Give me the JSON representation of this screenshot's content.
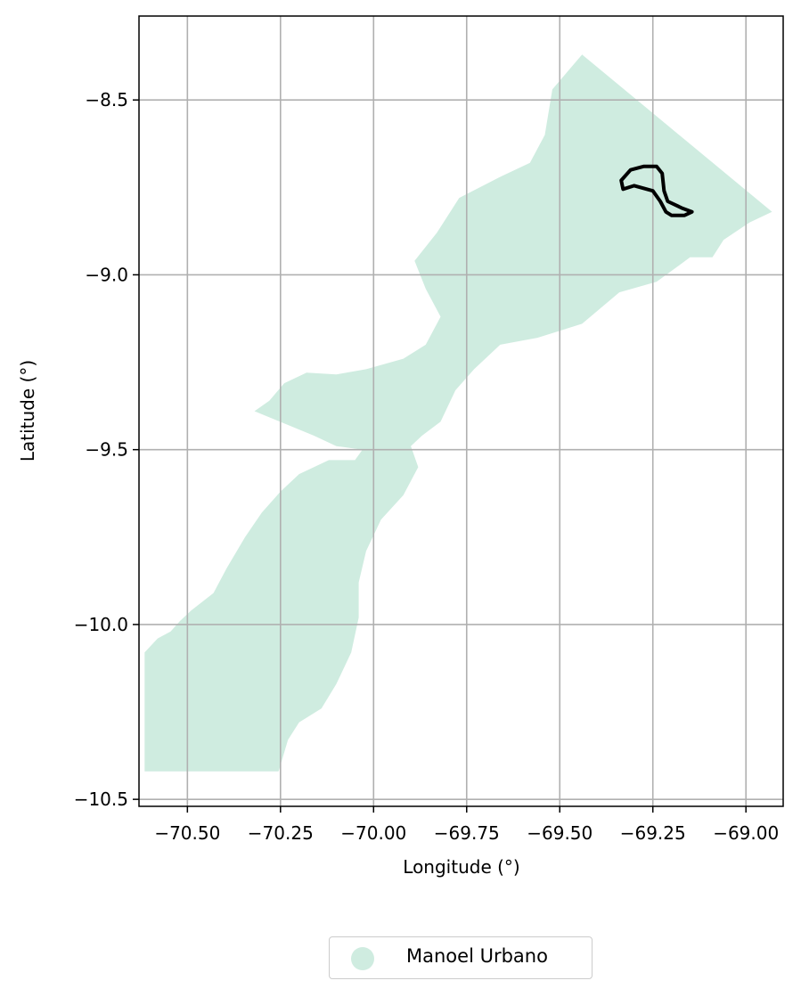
{
  "chart_data": {
    "type": "map",
    "xlabel": "Longitude (°)",
    "ylabel": "Latitude (°)",
    "xlim": [
      -70.63,
      -68.9
    ],
    "ylim": [
      -10.52,
      -8.26
    ],
    "grid": true,
    "xticks": [
      -70.5,
      -70.25,
      -70.0,
      -69.75,
      -69.5,
      -69.25,
      -69.0
    ],
    "xtick_labels": [
      "−70.50",
      "−70.25",
      "−70.00",
      "−69.75",
      "−69.50",
      "−69.25",
      "−69.00"
    ],
    "yticks": [
      -8.5,
      -9.0,
      -9.5,
      -10.0,
      -10.5
    ],
    "ytick_labels": [
      "−8.5",
      "−9.0",
      "−9.5",
      "−10.0",
      "−10.5"
    ],
    "legend": {
      "placement": "bottom-center",
      "entries": [
        {
          "label": "Manoel Urbano",
          "color": "#cfece0"
        }
      ]
    },
    "municipality": {
      "name": "Manoel Urbano",
      "fill": "#cfece0",
      "outline": [
        [
          -70.615,
          -10.42
        ],
        [
          -70.615,
          -10.08
        ],
        [
          -70.58,
          -10.04
        ],
        [
          -70.545,
          -10.02
        ],
        [
          -70.52,
          -9.99
        ],
        [
          -70.49,
          -9.96
        ],
        [
          -70.43,
          -9.91
        ],
        [
          -70.395,
          -9.84
        ],
        [
          -70.345,
          -9.75
        ],
        [
          -70.3,
          -9.68
        ],
        [
          -70.25,
          -9.62
        ],
        [
          -70.2,
          -9.57
        ],
        [
          -70.12,
          -9.53
        ],
        [
          -70.05,
          -9.53
        ],
        [
          -70.03,
          -9.5
        ],
        [
          -70.1,
          -9.49
        ],
        [
          -70.16,
          -9.46
        ],
        [
          -70.32,
          -9.39
        ],
        [
          -70.28,
          -9.36
        ],
        [
          -70.24,
          -9.31
        ],
        [
          -70.18,
          -9.28
        ],
        [
          -70.1,
          -9.285
        ],
        [
          -70.02,
          -9.27
        ],
        [
          -69.92,
          -9.24
        ],
        [
          -69.86,
          -9.2
        ],
        [
          -69.82,
          -9.12
        ],
        [
          -69.86,
          -9.04
        ],
        [
          -69.89,
          -8.96
        ],
        [
          -69.83,
          -8.88
        ],
        [
          -69.77,
          -8.78
        ],
        [
          -69.66,
          -8.72
        ],
        [
          -69.58,
          -8.68
        ],
        [
          -69.54,
          -8.6
        ],
        [
          -69.52,
          -8.47
        ],
        [
          -69.44,
          -8.37
        ],
        [
          -68.93,
          -8.82
        ],
        [
          -68.99,
          -8.85
        ],
        [
          -69.06,
          -8.9
        ],
        [
          -69.09,
          -8.95
        ],
        [
          -69.15,
          -8.95
        ],
        [
          -69.24,
          -9.02
        ],
        [
          -69.34,
          -9.05
        ],
        [
          -69.44,
          -9.14
        ],
        [
          -69.56,
          -9.18
        ],
        [
          -69.66,
          -9.2
        ],
        [
          -69.73,
          -9.27
        ],
        [
          -69.78,
          -9.33
        ],
        [
          -69.82,
          -9.42
        ],
        [
          -69.87,
          -9.46
        ],
        [
          -69.9,
          -9.49
        ],
        [
          -69.88,
          -9.55
        ],
        [
          -69.92,
          -9.63
        ],
        [
          -69.98,
          -9.7
        ],
        [
          -70.02,
          -9.79
        ],
        [
          -70.04,
          -9.88
        ],
        [
          -70.04,
          -9.98
        ],
        [
          -70.06,
          -10.08
        ],
        [
          -70.1,
          -10.17
        ],
        [
          -70.14,
          -10.24
        ],
        [
          -70.2,
          -10.28
        ],
        [
          -70.23,
          -10.33
        ],
        [
          -70.255,
          -10.42
        ]
      ]
    },
    "urban_area": {
      "outline": [
        [
          -69.335,
          -8.73
        ],
        [
          -69.31,
          -8.7
        ],
        [
          -69.275,
          -8.69
        ],
        [
          -69.24,
          -8.69
        ],
        [
          -69.225,
          -8.71
        ],
        [
          -69.22,
          -8.76
        ],
        [
          -69.21,
          -8.79
        ],
        [
          -69.17,
          -8.81
        ],
        [
          -69.145,
          -8.82
        ],
        [
          -69.165,
          -8.83
        ],
        [
          -69.2,
          -8.83
        ],
        [
          -69.215,
          -8.82
        ],
        [
          -69.23,
          -8.79
        ],
        [
          -69.25,
          -8.76
        ],
        [
          -69.3,
          -8.745
        ],
        [
          -69.33,
          -8.755
        ]
      ]
    }
  }
}
